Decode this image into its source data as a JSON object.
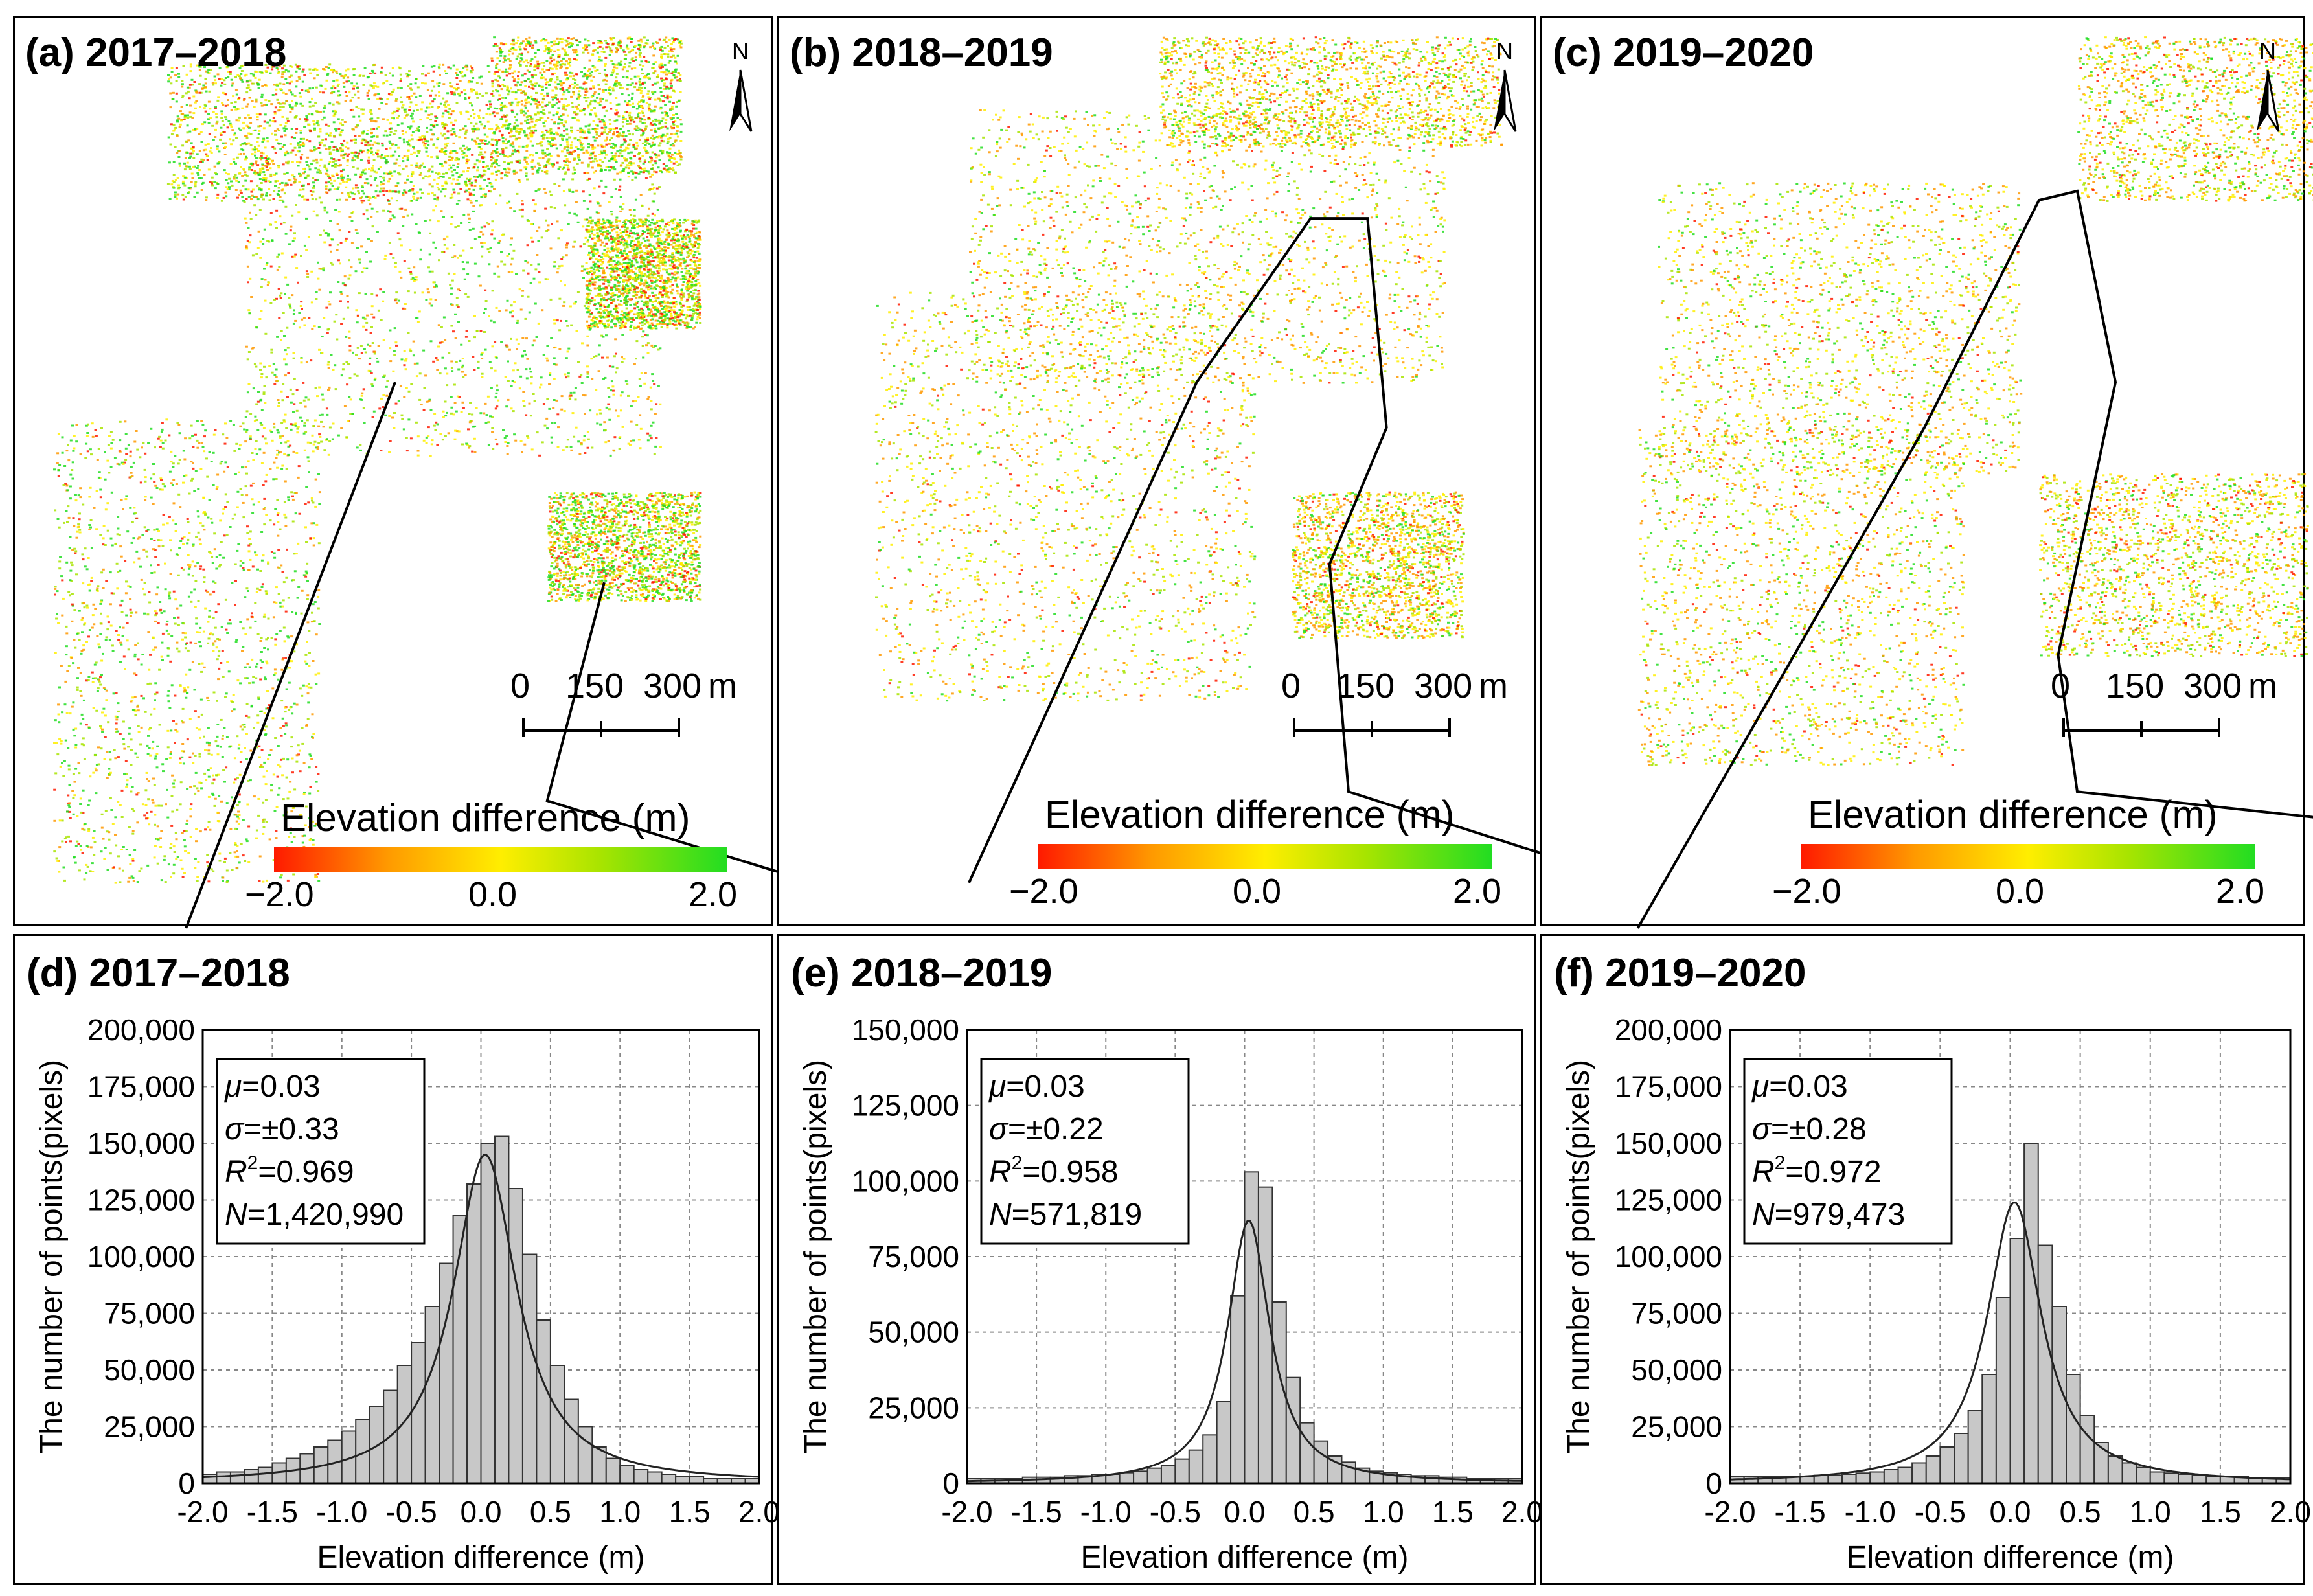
{
  "map_panels": [
    {
      "title": "(a) 2017–2018",
      "north_label": "N",
      "scale_labels": [
        "0",
        "150",
        "300",
        "m"
      ],
      "legend_title": "Elevation difference (m)",
      "legend_ticks": [
        "−2.0",
        "0.0",
        "2.0"
      ]
    },
    {
      "title": "(b) 2018–2019",
      "north_label": "N",
      "scale_labels": [
        "0",
        "150",
        "300",
        "m"
      ],
      "legend_title": "Elevation difference (m)",
      "legend_ticks": [
        "−2.0",
        "0.0",
        "2.0"
      ]
    },
    {
      "title": "(c) 2019–2020",
      "north_label": "N",
      "scale_labels": [
        "0",
        "150",
        "300",
        "m"
      ],
      "legend_title": "Elevation difference (m)",
      "legend_ticks": [
        "−2.0",
        "0.0",
        "2.0"
      ]
    }
  ],
  "legend_colors": [
    "#ff1a00",
    "#ff9900",
    "#ffee00",
    "#a8e400",
    "#22dd22"
  ],
  "shoreline_color": "#000000",
  "chart_data": [
    {
      "type": "bar",
      "title": "(d) 2017–2018",
      "xlabel": "Elevation difference (m)",
      "ylabel": "The number of points(pixels)",
      "xlim": [
        -2.0,
        2.0
      ],
      "ylim": [
        0,
        200000
      ],
      "xticks": [
        "-2.0",
        "-1.5",
        "-1.0",
        "-0.5",
        "0.0",
        "0.5",
        "1.0",
        "1.5",
        "2.0"
      ],
      "yticks": [
        "0",
        "25,000",
        "50,000",
        "75,000",
        "100,000",
        "125,000",
        "150,000",
        "175,000",
        "200,000"
      ],
      "grid": true,
      "bin_width": 0.1,
      "bin_centers": [
        -1.95,
        -1.85,
        -1.75,
        -1.65,
        -1.55,
        -1.45,
        -1.35,
        -1.25,
        -1.15,
        -1.05,
        -0.95,
        -0.85,
        -0.75,
        -0.65,
        -0.55,
        -0.45,
        -0.35,
        -0.25,
        -0.15,
        -0.05,
        0.05,
        0.15,
        0.25,
        0.35,
        0.45,
        0.55,
        0.65,
        0.75,
        0.85,
        0.95,
        1.05,
        1.15,
        1.25,
        1.35,
        1.45,
        1.55,
        1.65,
        1.75,
        1.85,
        1.95
      ],
      "values": [
        4000,
        5000,
        5000,
        6000,
        7000,
        9000,
        11000,
        13000,
        16000,
        19000,
        23000,
        28000,
        34000,
        41000,
        52000,
        62000,
        78000,
        97000,
        118000,
        132000,
        150000,
        153000,
        130000,
        101000,
        72000,
        52000,
        37000,
        25000,
        16000,
        11000,
        8000,
        6000,
        5000,
        4000,
        3000,
        3000,
        2000,
        2000,
        2000,
        2000
      ],
      "fit_curve": {
        "type": "Lorentzian",
        "mean": 0.03,
        "peak": 145000,
        "width": 0.33
      },
      "stats": {
        "mu_label": "μ",
        "mu": "=0.03",
        "sigma_label": "σ",
        "sigma": "=±0.33",
        "r2_label": "R",
        "r2_sup": "2",
        "r2": "=0.969",
        "n_label": "N",
        "n": "=1,420,990"
      }
    },
    {
      "type": "bar",
      "title": "(e) 2018–2019",
      "xlabel": "Elevation difference (m)",
      "ylabel": "The number of points(pixels)",
      "xlim": [
        -2.0,
        2.0
      ],
      "ylim": [
        0,
        150000
      ],
      "xticks": [
        "-2.0",
        "-1.5",
        "-1.0",
        "-0.5",
        "0.0",
        "0.5",
        "1.0",
        "1.5",
        "2.0"
      ],
      "yticks": [
        "0",
        "25,000",
        "50,000",
        "75,000",
        "100,000",
        "125,000",
        "150,000"
      ],
      "grid": true,
      "bin_width": 0.1,
      "bin_centers": [
        -1.95,
        -1.85,
        -1.75,
        -1.65,
        -1.55,
        -1.45,
        -1.35,
        -1.25,
        -1.15,
        -1.05,
        -0.95,
        -0.85,
        -0.75,
        -0.65,
        -0.55,
        -0.45,
        -0.35,
        -0.25,
        -0.15,
        -0.05,
        0.05,
        0.15,
        0.25,
        0.35,
        0.45,
        0.55,
        0.65,
        0.75,
        0.85,
        0.95,
        1.05,
        1.15,
        1.25,
        1.35,
        1.45,
        1.55,
        1.65,
        1.75,
        1.85,
        1.95
      ],
      "values": [
        1500,
        1500,
        1500,
        1500,
        2000,
        2000,
        2000,
        2500,
        2500,
        3000,
        3000,
        3500,
        4000,
        5000,
        6000,
        8000,
        11000,
        16000,
        27000,
        62000,
        103000,
        98000,
        60000,
        35000,
        20000,
        14000,
        9000,
        7000,
        5000,
        4000,
        3500,
        3000,
        2500,
        2500,
        2000,
        2000,
        1500,
        1500,
        1500,
        1500
      ],
      "fit_curve": {
        "type": "Lorentzian",
        "mean": 0.03,
        "peak": 87000,
        "width": 0.22
      },
      "stats": {
        "mu_label": "μ",
        "mu": "=0.03",
        "sigma_label": "σ",
        "sigma": "=±0.22",
        "r2_label": "R",
        "r2_sup": "2",
        "r2": "=0.958",
        "n_label": "N",
        "n": "=571,819"
      }
    },
    {
      "type": "bar",
      "title": "(f) 2019–2020",
      "xlabel": "Elevation difference (m)",
      "ylabel": "The number of points(pixels)",
      "xlim": [
        -2.0,
        2.0
      ],
      "ylim": [
        0,
        200000
      ],
      "xticks": [
        "-2.0",
        "-1.5",
        "-1.0",
        "-0.5",
        "0.0",
        "0.5",
        "1.0",
        "1.5",
        "2.0"
      ],
      "yticks": [
        "0",
        "25,000",
        "50,000",
        "75,000",
        "100,000",
        "125,000",
        "150,000",
        "175,000",
        "200,000"
      ],
      "grid": true,
      "bin_width": 0.1,
      "bin_centers": [
        -1.95,
        -1.85,
        -1.75,
        -1.65,
        -1.55,
        -1.45,
        -1.35,
        -1.25,
        -1.15,
        -1.05,
        -0.95,
        -0.85,
        -0.75,
        -0.65,
        -0.55,
        -0.45,
        -0.35,
        -0.25,
        -0.15,
        -0.05,
        0.05,
        0.15,
        0.25,
        0.35,
        0.45,
        0.55,
        0.65,
        0.75,
        0.85,
        0.95,
        1.05,
        1.15,
        1.25,
        1.35,
        1.45,
        1.55,
        1.65,
        1.75,
        1.85,
        1.95
      ],
      "values": [
        3000,
        3000,
        3000,
        3000,
        3000,
        3000,
        3500,
        3500,
        4000,
        4500,
        5000,
        6000,
        7000,
        9000,
        12000,
        16000,
        22000,
        32000,
        48000,
        82000,
        108000,
        150000,
        105000,
        78000,
        48000,
        30000,
        18000,
        12000,
        9000,
        7000,
        5000,
        4500,
        4000,
        3500,
        3000,
        3000,
        3000,
        2500,
        2500,
        2500
      ],
      "fit_curve": {
        "type": "Lorentzian",
        "mean": 0.03,
        "peak": 124000,
        "width": 0.28
      },
      "stats": {
        "mu_label": "μ",
        "mu": "=0.03",
        "sigma_label": "σ",
        "sigma": "=±0.28",
        "r2_label": "R",
        "r2_sup": "2",
        "r2": "=0.972",
        "n_label": "N",
        "n": "=979,473"
      }
    }
  ]
}
